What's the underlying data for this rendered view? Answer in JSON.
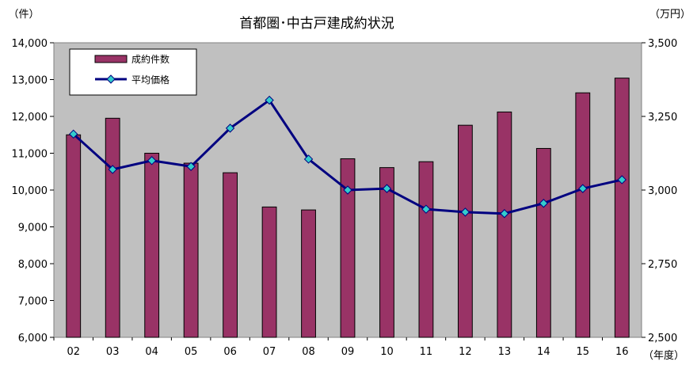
{
  "chart_data": {
    "type": "bar",
    "title": "首都圏･中古戸建成約状況",
    "left_unit": "（件）",
    "right_unit": "（万円）",
    "x_unit": "（年度）",
    "categories": [
      "02",
      "03",
      "04",
      "05",
      "06",
      "07",
      "08",
      "09",
      "10",
      "11",
      "12",
      "13",
      "14",
      "15",
      "16"
    ],
    "left_axis": {
      "min": 6000,
      "max": 14000,
      "ticks": [
        "6,000",
        "7,000",
        "8,000",
        "9,000",
        "10,000",
        "11,000",
        "12,000",
        "13,000",
        "14,000"
      ]
    },
    "right_axis": {
      "min": 2500,
      "max": 3500,
      "ticks": [
        "2,500",
        "2,750",
        "3,000",
        "3,250",
        "3,500"
      ]
    },
    "series": [
      {
        "name": "成約件数",
        "type": "bar",
        "axis": "left",
        "values": [
          11500,
          11950,
          11000,
          10730,
          10470,
          9540,
          9460,
          10850,
          10610,
          10770,
          11760,
          12120,
          11130,
          12640,
          13040
        ],
        "color": "#993366"
      },
      {
        "name": "平均価格",
        "type": "line",
        "axis": "right",
        "values": [
          3190,
          3070,
          3100,
          3080,
          3210,
          3305,
          3105,
          3000,
          3005,
          2935,
          2925,
          2920,
          2955,
          3005,
          3035
        ],
        "color": "#000080",
        "marker_color": "#33CCCC"
      }
    ],
    "grid": false,
    "legend": "top-left",
    "plot_background": "#C0C0C0"
  }
}
